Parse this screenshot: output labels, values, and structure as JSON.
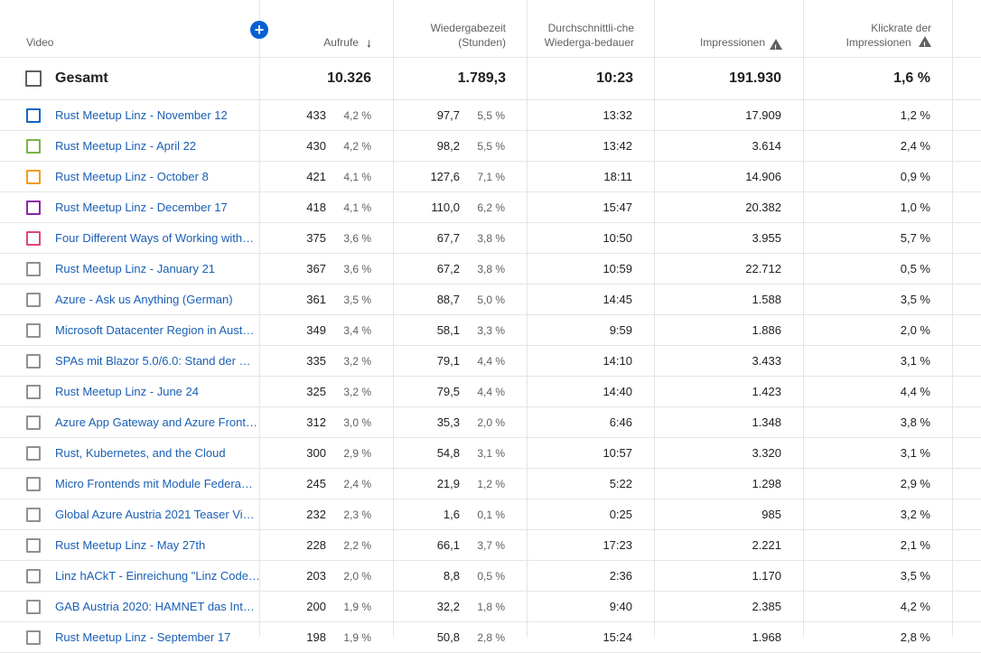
{
  "header": {
    "video": "Video",
    "views": "Aufrufe",
    "watch_time": "Wiedergabezeit (Stunden)",
    "avg_duration": "Durchschnittli-che Wiederga-bedauer",
    "impressions": "Impressionen",
    "ctr": "Klickrate der Impressionen",
    "add_icon": "plus-icon",
    "sort_icon": "arrow-down-icon",
    "warn_icon": "warning-icon"
  },
  "total": {
    "label": "Gesamt",
    "views": "10.326",
    "watch_time": "1.789,3",
    "avg_duration": "10:23",
    "impressions": "191.930",
    "ctr": "1,6 %"
  },
  "rows": [
    {
      "title": "Rust Meetup Linz - November 12",
      "color": "#1565c0",
      "views": "433",
      "views_pct": "4,2 %",
      "watch": "97,7",
      "watch_pct": "5,5 %",
      "avg": "13:32",
      "impr": "17.909",
      "ctr": "1,2 %"
    },
    {
      "title": "Rust Meetup Linz - April 22",
      "color": "#7cb342",
      "views": "430",
      "views_pct": "4,2 %",
      "watch": "98,2",
      "watch_pct": "5,5 %",
      "avg": "13:42",
      "impr": "3.614",
      "ctr": "2,4 %"
    },
    {
      "title": "Rust Meetup Linz - October 8",
      "color": "#f29b1d",
      "views": "421",
      "views_pct": "4,1 %",
      "watch": "127,6",
      "watch_pct": "7,1 %",
      "avg": "18:11",
      "impr": "14.906",
      "ctr": "0,9 %"
    },
    {
      "title": "Rust Meetup Linz - December 17",
      "color": "#8e24aa",
      "views": "418",
      "views_pct": "4,1 %",
      "watch": "110,0",
      "watch_pct": "6,2 %",
      "avg": "15:47",
      "impr": "20.382",
      "ctr": "1,0 %"
    },
    {
      "title": "Four Different Ways of Working with…",
      "color": "#e0457b",
      "views": "375",
      "views_pct": "3,6 %",
      "watch": "67,7",
      "watch_pct": "3,8 %",
      "avg": "10:50",
      "impr": "3.955",
      "ctr": "5,7 %"
    },
    {
      "title": "Rust Meetup Linz - January 21",
      "color": "#909090",
      "views": "367",
      "views_pct": "3,6 %",
      "watch": "67,2",
      "watch_pct": "3,8 %",
      "avg": "10:59",
      "impr": "22.712",
      "ctr": "0,5 %"
    },
    {
      "title": "Azure - Ask us Anything (German)",
      "color": "#909090",
      "views": "361",
      "views_pct": "3,5 %",
      "watch": "88,7",
      "watch_pct": "5,0 %",
      "avg": "14:45",
      "impr": "1.588",
      "ctr": "3,5 %"
    },
    {
      "title": "Microsoft Datacenter Region in Aust…",
      "color": "#909090",
      "views": "349",
      "views_pct": "3,4 %",
      "watch": "58,1",
      "watch_pct": "3,3 %",
      "avg": "9:59",
      "impr": "1.886",
      "ctr": "2,0 %"
    },
    {
      "title": "SPAs mit Blazor 5.0/6.0: Stand der …",
      "color": "#909090",
      "views": "335",
      "views_pct": "3,2 %",
      "watch": "79,1",
      "watch_pct": "4,4 %",
      "avg": "14:10",
      "impr": "3.433",
      "ctr": "3,1 %"
    },
    {
      "title": "Rust Meetup Linz - June 24",
      "color": "#909090",
      "views": "325",
      "views_pct": "3,2 %",
      "watch": "79,5",
      "watch_pct": "4,4 %",
      "avg": "14:40",
      "impr": "1.423",
      "ctr": "4,4 %"
    },
    {
      "title": "Azure App Gateway and Azure Front…",
      "color": "#909090",
      "views": "312",
      "views_pct": "3,0 %",
      "watch": "35,3",
      "watch_pct": "2,0 %",
      "avg": "6:46",
      "impr": "1.348",
      "ctr": "3,8 %"
    },
    {
      "title": "Rust, Kubernetes, and the Cloud",
      "color": "#909090",
      "views": "300",
      "views_pct": "2,9 %",
      "watch": "54,8",
      "watch_pct": "3,1 %",
      "avg": "10:57",
      "impr": "3.320",
      "ctr": "3,1 %"
    },
    {
      "title": "Micro Frontends mit Module Federa…",
      "color": "#909090",
      "views": "245",
      "views_pct": "2,4 %",
      "watch": "21,9",
      "watch_pct": "1,2 %",
      "avg": "5:22",
      "impr": "1.298",
      "ctr": "2,9 %"
    },
    {
      "title": "Global Azure Austria 2021 Teaser Vi…",
      "color": "#909090",
      "views": "232",
      "views_pct": "2,3 %",
      "watch": "1,6",
      "watch_pct": "0,1 %",
      "avg": "0:25",
      "impr": "985",
      "ctr": "3,2 %"
    },
    {
      "title": "Rust Meetup Linz - May 27th",
      "color": "#909090",
      "views": "228",
      "views_pct": "2,2 %",
      "watch": "66,1",
      "watch_pct": "3,7 %",
      "avg": "17:23",
      "impr": "2.221",
      "ctr": "2,1 %"
    },
    {
      "title": "Linz hACkT - Einreichung \"Linz Code…",
      "color": "#909090",
      "views": "203",
      "views_pct": "2,0 %",
      "watch": "8,8",
      "watch_pct": "0,5 %",
      "avg": "2:36",
      "impr": "1.170",
      "ctr": "3,5 %"
    },
    {
      "title": "GAB Austria 2020: HAMNET das Int…",
      "color": "#909090",
      "views": "200",
      "views_pct": "1,9 %",
      "watch": "32,2",
      "watch_pct": "1,8 %",
      "avg": "9:40",
      "impr": "2.385",
      "ctr": "4,2 %"
    },
    {
      "title": "Rust Meetup Linz - September 17",
      "color": "#909090",
      "views": "198",
      "views_pct": "1,9 %",
      "watch": "50,8",
      "watch_pct": "2,8 %",
      "avg": "15:24",
      "impr": "1.968",
      "ctr": "2,8 %"
    }
  ]
}
